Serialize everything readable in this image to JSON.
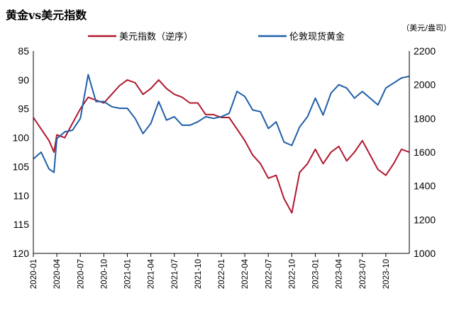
{
  "chart_data": {
    "type": "line",
    "title": "黄金vs美元指数",
    "right_axis_unit": "（美元/盎司）",
    "x_ticks": [
      "2020-01",
      "2020-04",
      "2020-07",
      "2020-10",
      "2021-01",
      "2021-04",
      "2021-07",
      "2021-10",
      "2022-01",
      "2022-04",
      "2022-07",
      "2022-10",
      "2023-01",
      "2023-04",
      "2023-07",
      "2023-10"
    ],
    "x_range": [
      "2020-01",
      "2024-01"
    ],
    "left_axis": {
      "ticks": [
        85,
        90,
        95,
        100,
        105,
        110,
        115,
        120
      ],
      "ylim": [
        85,
        120
      ],
      "inverted": true
    },
    "right_axis": {
      "ticks": [
        2200,
        2000,
        1800,
        1600,
        1400,
        1200,
        1000
      ],
      "ylim": [
        1000,
        2200
      ]
    },
    "legend_placement": "top",
    "grid": false,
    "series": [
      {
        "name": "美元指数（逆序）",
        "axis": "left",
        "color": "#b0182e",
        "points": [
          [
            "2020-01",
            96.5
          ],
          [
            "2020-02",
            98.5
          ],
          [
            "2020-03",
            100.5
          ],
          [
            "2020-03-20",
            102.5
          ],
          [
            "2020-04",
            99.5
          ],
          [
            "2020-05",
            100.0
          ],
          [
            "2020-06",
            97.5
          ],
          [
            "2020-07",
            95.0
          ],
          [
            "2020-08",
            93.0
          ],
          [
            "2020-09",
            93.5
          ],
          [
            "2020-10",
            94.0
          ],
          [
            "2020-11",
            92.5
          ],
          [
            "2020-12",
            91.0
          ],
          [
            "2021-01",
            90.0
          ],
          [
            "2021-02",
            90.5
          ],
          [
            "2021-03",
            92.5
          ],
          [
            "2021-04",
            91.5
          ],
          [
            "2021-05",
            90.0
          ],
          [
            "2021-06",
            91.5
          ],
          [
            "2021-07",
            92.5
          ],
          [
            "2021-08",
            93.0
          ],
          [
            "2021-09",
            94.0
          ],
          [
            "2021-10",
            94.0
          ],
          [
            "2021-11",
            96.0
          ],
          [
            "2021-12",
            96.0
          ],
          [
            "2022-01",
            96.5
          ],
          [
            "2022-02",
            96.5
          ],
          [
            "2022-03",
            98.5
          ],
          [
            "2022-04",
            100.5
          ],
          [
            "2022-05",
            103.0
          ],
          [
            "2022-06",
            104.5
          ],
          [
            "2022-07",
            107.0
          ],
          [
            "2022-08",
            106.5
          ],
          [
            "2022-09",
            110.5
          ],
          [
            "2022-10",
            113.0
          ],
          [
            "2022-11",
            106.0
          ],
          [
            "2022-12",
            104.5
          ],
          [
            "2023-01",
            102.0
          ],
          [
            "2023-02",
            104.5
          ],
          [
            "2023-03",
            102.5
          ],
          [
            "2023-04",
            101.5
          ],
          [
            "2023-05",
            104.0
          ],
          [
            "2023-06",
            102.5
          ],
          [
            "2023-07",
            100.5
          ],
          [
            "2023-08",
            103.0
          ],
          [
            "2023-09",
            105.5
          ],
          [
            "2023-10",
            106.5
          ],
          [
            "2023-11",
            104.5
          ],
          [
            "2023-12",
            102.0
          ],
          [
            "2024-01",
            102.5
          ]
        ]
      },
      {
        "name": "伦敦现货黄金",
        "axis": "right",
        "color": "#1f5fa8",
        "points": [
          [
            "2020-01",
            1560
          ],
          [
            "2020-02",
            1600
          ],
          [
            "2020-03",
            1500
          ],
          [
            "2020-03-20",
            1480
          ],
          [
            "2020-04",
            1680
          ],
          [
            "2020-05",
            1720
          ],
          [
            "2020-06",
            1730
          ],
          [
            "2020-07",
            1800
          ],
          [
            "2020-08",
            2060
          ],
          [
            "2020-09",
            1900
          ],
          [
            "2020-10",
            1900
          ],
          [
            "2020-11",
            1870
          ],
          [
            "2020-12",
            1860
          ],
          [
            "2021-01",
            1860
          ],
          [
            "2021-02",
            1800
          ],
          [
            "2021-03",
            1710
          ],
          [
            "2021-04",
            1770
          ],
          [
            "2021-05",
            1900
          ],
          [
            "2021-06",
            1790
          ],
          [
            "2021-07",
            1810
          ],
          [
            "2021-08",
            1760
          ],
          [
            "2021-09",
            1760
          ],
          [
            "2021-10",
            1780
          ],
          [
            "2021-11",
            1810
          ],
          [
            "2021-12",
            1800
          ],
          [
            "2022-01",
            1810
          ],
          [
            "2022-02",
            1830
          ],
          [
            "2022-03",
            1960
          ],
          [
            "2022-04",
            1930
          ],
          [
            "2022-05",
            1850
          ],
          [
            "2022-06",
            1840
          ],
          [
            "2022-07",
            1740
          ],
          [
            "2022-08",
            1780
          ],
          [
            "2022-09",
            1660
          ],
          [
            "2022-10",
            1640
          ],
          [
            "2022-11",
            1750
          ],
          [
            "2022-12",
            1810
          ],
          [
            "2023-01",
            1920
          ],
          [
            "2023-02",
            1820
          ],
          [
            "2023-03",
            1950
          ],
          [
            "2023-04",
            2000
          ],
          [
            "2023-05",
            1980
          ],
          [
            "2023-06",
            1920
          ],
          [
            "2023-07",
            1960
          ],
          [
            "2023-08",
            1920
          ],
          [
            "2023-09",
            1880
          ],
          [
            "2023-10",
            1980
          ],
          [
            "2023-11",
            2010
          ],
          [
            "2023-12",
            2040
          ],
          [
            "2024-01",
            2050
          ]
        ]
      }
    ]
  }
}
